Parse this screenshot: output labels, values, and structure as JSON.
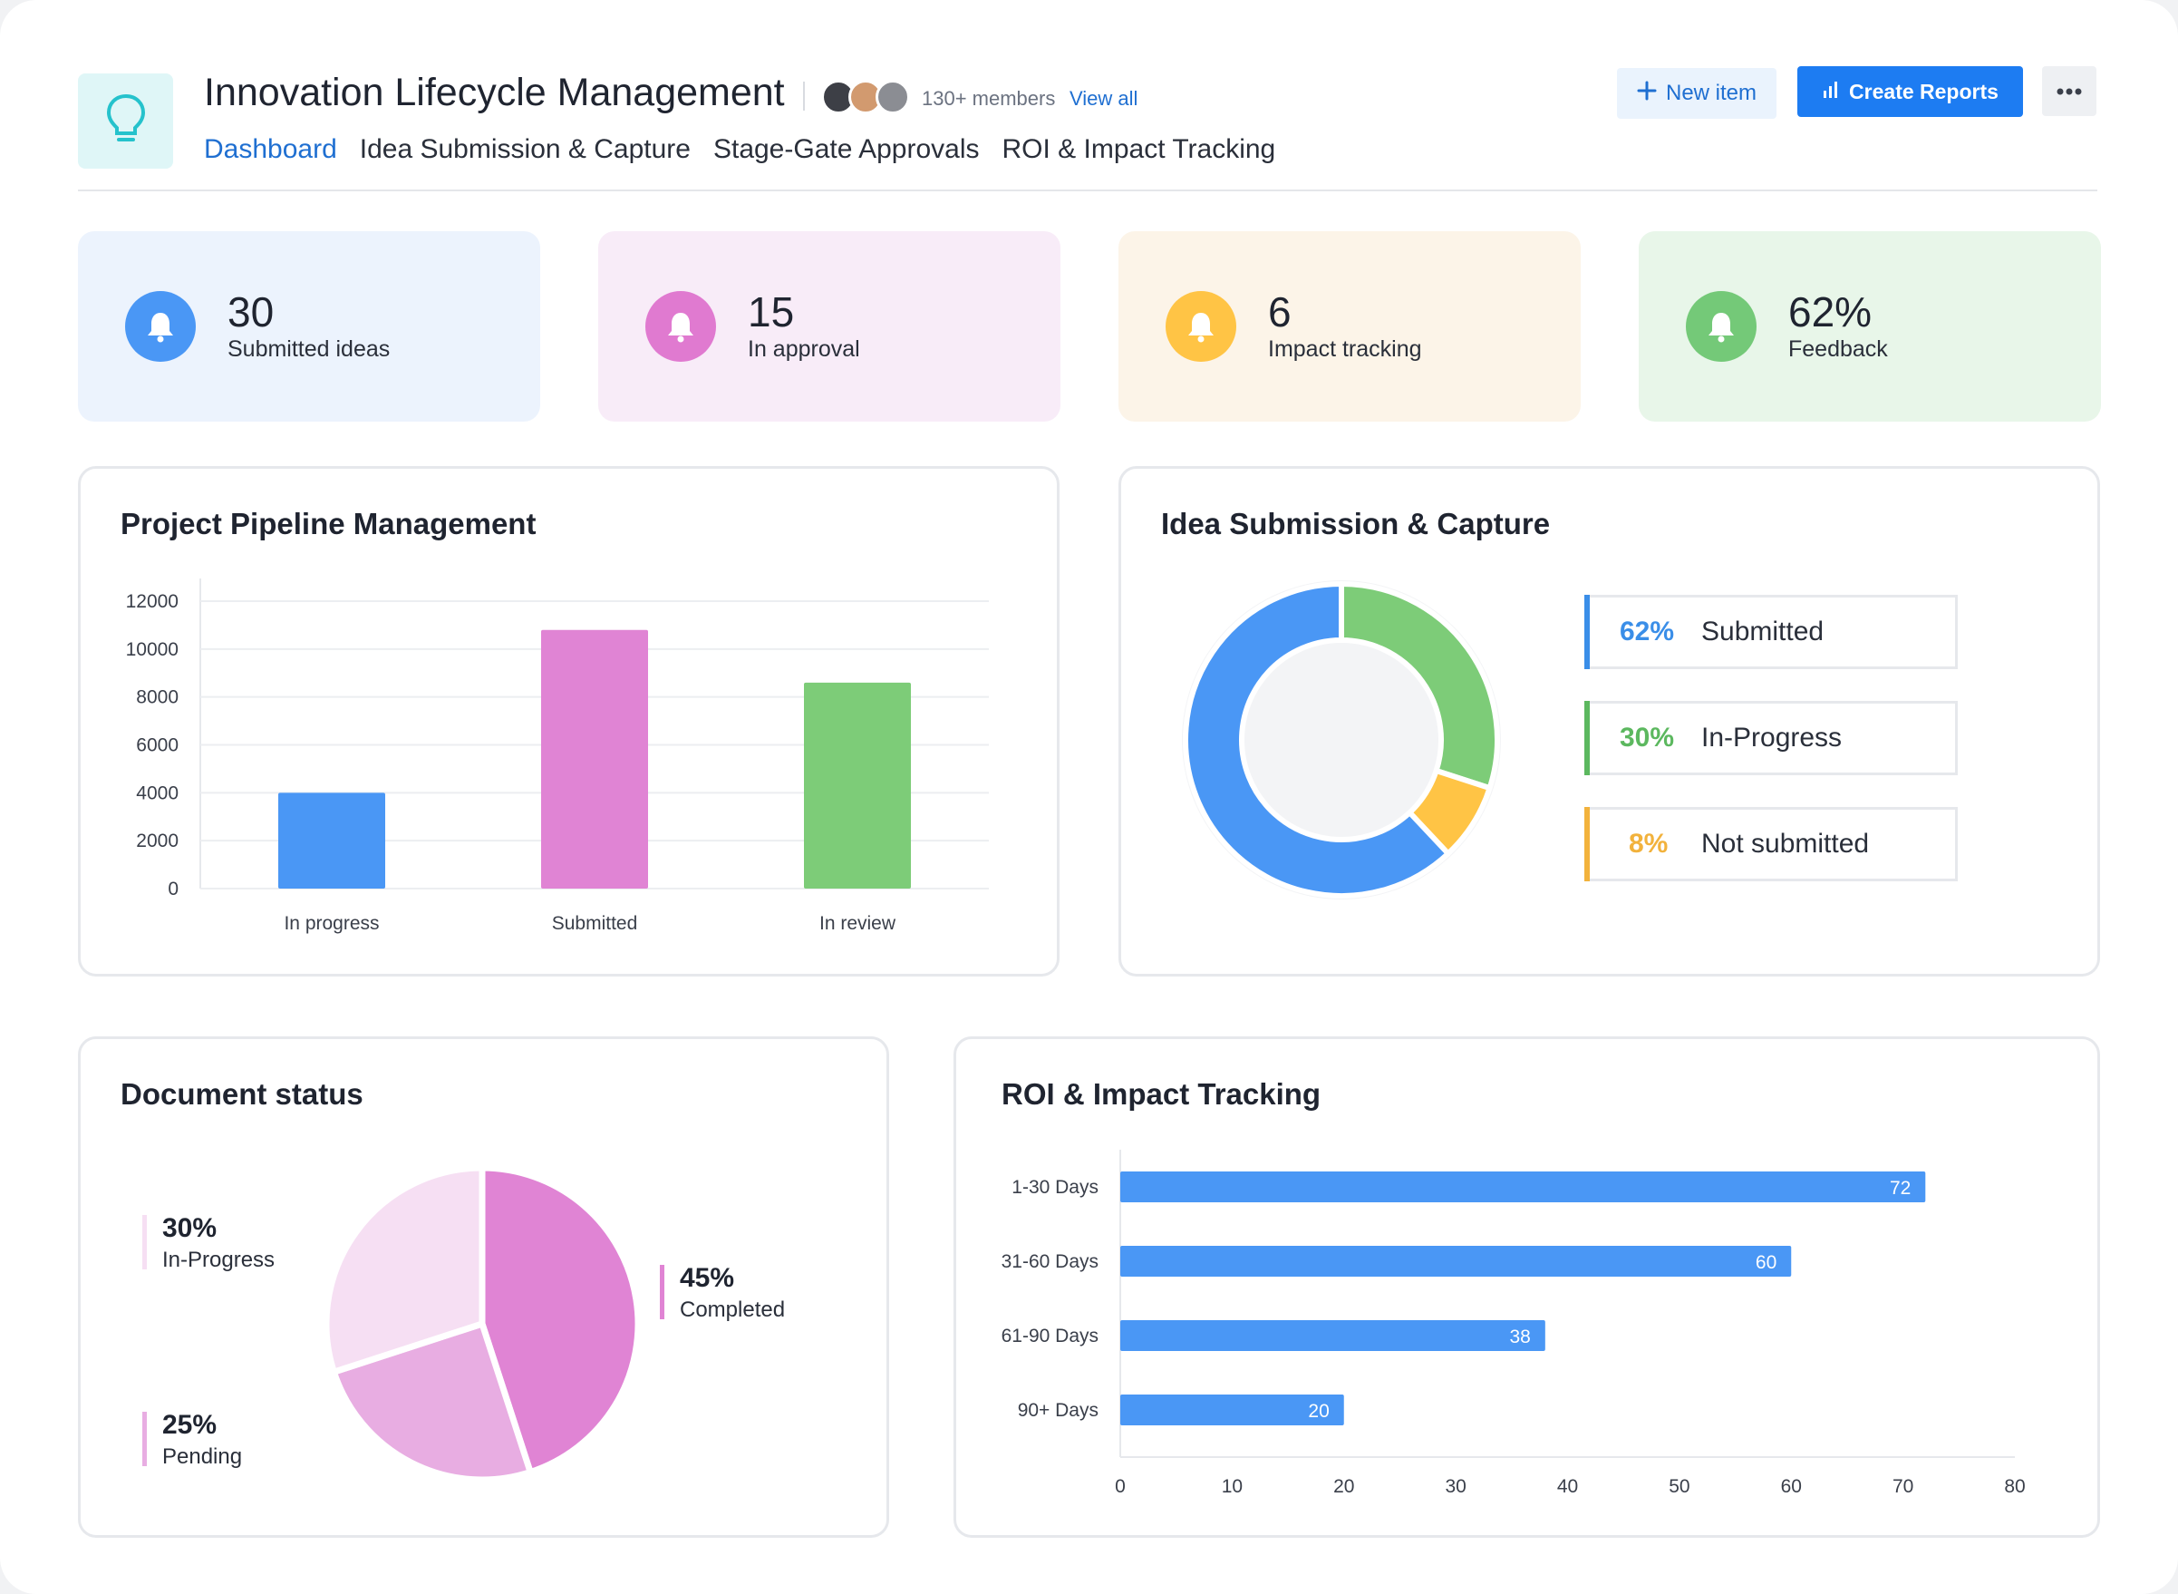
{
  "header": {
    "title": "Innovation Lifecycle Management",
    "members": "130+ members",
    "view_all": "View all",
    "new_item_label": "New item",
    "create_reports_label": "Create Reports",
    "tabs": [
      {
        "label": "Dashboard",
        "active": true
      },
      {
        "label": "Idea Submission & Capture",
        "active": false
      },
      {
        "label": "Stage-Gate Approvals",
        "active": false
      },
      {
        "label": "ROI & Impact Tracking",
        "active": false
      }
    ],
    "icons": {
      "logo": "lightbulb-icon",
      "new_item": "plus-icon",
      "create_reports": "bar-chart-icon",
      "more": "more-horizontal-icon"
    },
    "accent": "#1d7cf2"
  },
  "stats": [
    {
      "value": "30",
      "label": "Submitted ideas",
      "icon": "bell-icon",
      "color": "#4a97f5",
      "bg": "#ecf3fd"
    },
    {
      "value": "15",
      "label": "In approval",
      "icon": "bell-icon",
      "color": "#e07ad0",
      "bg": "#f8ecf8"
    },
    {
      "value": "6",
      "label": "Impact tracking",
      "icon": "bell-icon",
      "color": "#ffc445",
      "bg": "#fcf4e8"
    },
    {
      "value": "62%",
      "label": "Feedback",
      "icon": "bell-icon",
      "color": "#74c978",
      "bg": "#e8f6e9"
    }
  ],
  "pipeline": {
    "title": "Project Pipeline Management",
    "chart_data": {
      "type": "bar",
      "categories": [
        "In progress",
        "Submitted",
        "In review"
      ],
      "values": [
        4000,
        10800,
        8600
      ],
      "colors": [
        "#4a97f5",
        "#e084d4",
        "#7dcc78"
      ],
      "ylim": [
        0,
        12000
      ],
      "yticks": [
        "0",
        "2000",
        "4000",
        "6000",
        "8000",
        "10000",
        "12000"
      ],
      "grid": true
    }
  },
  "idea_submission": {
    "title": "Idea Submission & Capture",
    "chart_data": {
      "type": "pie",
      "donut": true,
      "slices": [
        {
          "label": "Submitted",
          "value": 62,
          "color": "#4a97f5"
        },
        {
          "label": "In-Progress",
          "value": 30,
          "color": "#7dcc78"
        },
        {
          "label": "Not submitted",
          "value": 8,
          "color": "#ffc445"
        }
      ]
    },
    "legend": [
      {
        "pct": "62%",
        "label": "Submitted",
        "color": "#3a8ee8"
      },
      {
        "pct": "30%",
        "label": "In-Progress",
        "color": "#5cb85f"
      },
      {
        "pct": "8%",
        "label": "Not submitted",
        "color": "#f2b23c"
      }
    ]
  },
  "document_status": {
    "title": "Document status",
    "chart_data": {
      "type": "pie",
      "slices": [
        {
          "label": "Completed",
          "value": 45,
          "color": "#e084d4"
        },
        {
          "label": "Pending",
          "value": 25,
          "color": "#e8ade2"
        },
        {
          "label": "In-Progress",
          "value": 30,
          "color": "#f6dff3"
        }
      ]
    },
    "labels": [
      {
        "pct": "30%",
        "label": "In-Progress"
      },
      {
        "pct": "45%",
        "label": "Completed"
      },
      {
        "pct": "25%",
        "label": "Pending"
      }
    ]
  },
  "roi": {
    "title": "ROI & Impact Tracking",
    "chart_data": {
      "type": "bar",
      "orientation": "horizontal",
      "categories": [
        "1-30 Days",
        "31-60 Days",
        "61-90 Days",
        "90+ Days"
      ],
      "values": [
        72,
        60,
        38,
        20
      ],
      "color": "#4a97f5",
      "xlim": [
        0,
        80
      ],
      "xticks": [
        "0",
        "10",
        "20",
        "30",
        "40",
        "50",
        "60",
        "70",
        "80"
      ]
    }
  }
}
